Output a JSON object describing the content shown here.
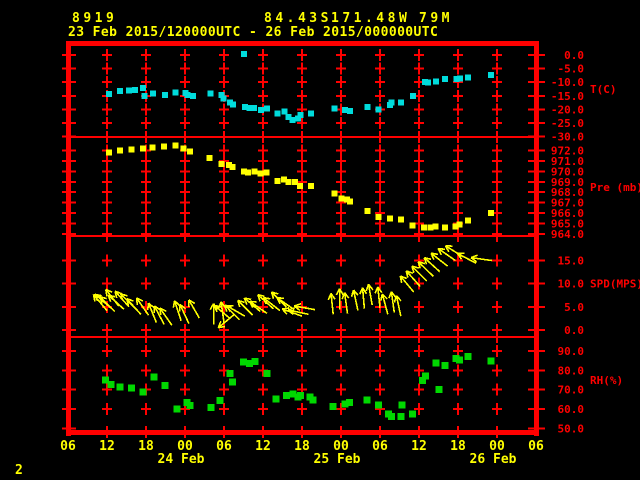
{
  "header": {
    "station_id": "8919",
    "lat": "84.43S",
    "lon": "171.48W",
    "elev": "79M",
    "period": "23 Feb 2015/120000UTC - 26 Feb 2015/000000UTC"
  },
  "footer": {
    "note": "2"
  },
  "colors": {
    "background": "#000000",
    "frame": "#ff0000",
    "axis_text": "#ff0000",
    "header_text": "#ffff00",
    "time_text": "#ffff00",
    "temperature": "#00dcdc",
    "pressure": "#ffff00",
    "wind": "#ffff00",
    "humidity": "#00d800"
  },
  "time_axis": {
    "hours_total": 72,
    "hour_step": 6,
    "hour_labels": [
      "06",
      "12",
      "18",
      "00",
      "06",
      "12",
      "18",
      "00",
      "06",
      "12",
      "18",
      "00",
      "06"
    ],
    "date_labels": [
      {
        "text": "24 Feb",
        "col": 3
      },
      {
        "text": "25 Feb",
        "col": 7
      },
      {
        "text": "26 Feb",
        "col": 11
      }
    ]
  },
  "chart_data": [
    {
      "id": "temperature",
      "type": "scatter",
      "unit_label": "T(C)",
      "unit_label_y_value": -12.5,
      "color_key": "temperature",
      "ylim": [
        3.3,
        -30.1
      ],
      "yticks": [
        0,
        -5,
        -10,
        -15,
        -20,
        -25,
        -30
      ],
      "ytick_labels": [
        "0.0",
        "-5.0",
        "-10.0",
        "-15.0",
        "-20.0",
        "-25.0",
        "-30.0"
      ],
      "plus_rows": [
        0,
        -5,
        -10,
        -15,
        -20,
        -25
      ],
      "points": [
        [
          6.3,
          -14.4
        ],
        [
          8.0,
          -13.2
        ],
        [
          9.4,
          -13.1
        ],
        [
          10.3,
          -12.9
        ],
        [
          11.5,
          -12.1
        ],
        [
          11.8,
          -15.0
        ],
        [
          13.1,
          -14.1
        ],
        [
          14.9,
          -14.7
        ],
        [
          16.5,
          -13.7
        ],
        [
          18.1,
          -13.9
        ],
        [
          18.4,
          -14.7
        ],
        [
          19.2,
          -15.1
        ],
        [
          21.9,
          -14.1
        ],
        [
          23.6,
          -14.7
        ],
        [
          23.9,
          -15.9
        ],
        [
          24.9,
          -17.4
        ],
        [
          25.4,
          -18.1
        ],
        [
          27.1,
          0.3
        ],
        [
          27.2,
          -19.0
        ],
        [
          27.9,
          -19.4
        ],
        [
          28.6,
          -19.4
        ],
        [
          29.7,
          -20.2
        ],
        [
          30.6,
          -19.6
        ],
        [
          32.2,
          -21.4
        ],
        [
          33.3,
          -20.8
        ],
        [
          33.9,
          -22.7
        ],
        [
          34.5,
          -23.9
        ],
        [
          35.4,
          -23.3
        ],
        [
          35.8,
          -22.1
        ],
        [
          37.4,
          -21.4
        ],
        [
          41.0,
          -19.6
        ],
        [
          42.6,
          -20.2
        ],
        [
          43.4,
          -20.5
        ],
        [
          46.1,
          -19.0
        ],
        [
          47.8,
          -20.0
        ],
        [
          49.5,
          -18.4
        ],
        [
          49.8,
          -17.4
        ],
        [
          51.2,
          -17.4
        ],
        [
          53.1,
          -15.0
        ],
        [
          54.9,
          -10.0
        ],
        [
          55.4,
          -10.1
        ],
        [
          56.6,
          -9.8
        ],
        [
          58.0,
          -8.8
        ],
        [
          59.8,
          -8.8
        ],
        [
          60.3,
          -8.6
        ],
        [
          61.5,
          -8.3
        ],
        [
          65.1,
          -7.3
        ]
      ]
    },
    {
      "id": "pressure",
      "type": "scatter",
      "unit_label": "Pre (mb)",
      "unit_label_y_value": 968.5,
      "color_key": "pressure",
      "ylim": [
        973.3,
        963.8
      ],
      "yticks": [
        972,
        971,
        970,
        969,
        968,
        967,
        966,
        965,
        964
      ],
      "ytick_labels": [
        "972.0",
        "971.0",
        "970.0",
        "969.0",
        "968.0",
        "967.0",
        "966.0",
        "965.0",
        "964.0"
      ],
      "plus_rows": [
        972,
        971,
        970,
        969,
        968,
        967,
        966,
        965,
        964
      ],
      "points": [
        [
          6.3,
          971.8
        ],
        [
          8.0,
          972.0
        ],
        [
          9.8,
          972.1
        ],
        [
          11.5,
          972.2
        ],
        [
          13.0,
          972.3
        ],
        [
          14.8,
          972.4
        ],
        [
          16.5,
          972.5
        ],
        [
          17.8,
          972.2
        ],
        [
          18.8,
          971.9
        ],
        [
          21.8,
          971.3
        ],
        [
          23.6,
          970.7
        ],
        [
          24.8,
          970.6
        ],
        [
          25.3,
          970.4
        ],
        [
          27.1,
          970.0
        ],
        [
          27.7,
          969.9
        ],
        [
          28.7,
          970.0
        ],
        [
          29.6,
          969.8
        ],
        [
          30.5,
          969.9
        ],
        [
          32.2,
          969.1
        ],
        [
          33.2,
          969.2
        ],
        [
          33.9,
          969.0
        ],
        [
          34.9,
          969.0
        ],
        [
          35.7,
          968.6
        ],
        [
          37.4,
          968.6
        ],
        [
          41.0,
          967.9
        ],
        [
          42.1,
          967.4
        ],
        [
          42.9,
          967.3
        ],
        [
          43.4,
          967.1
        ],
        [
          46.1,
          966.2
        ],
        [
          47.8,
          965.6
        ],
        [
          49.5,
          965.5
        ],
        [
          51.2,
          965.4
        ],
        [
          53.0,
          964.8
        ],
        [
          54.8,
          964.6
        ],
        [
          55.8,
          964.6
        ],
        [
          56.5,
          964.7
        ],
        [
          58.0,
          964.6
        ],
        [
          59.6,
          964.7
        ],
        [
          60.2,
          964.9
        ],
        [
          61.5,
          965.3
        ],
        [
          65.1,
          966.0
        ]
      ]
    },
    {
      "id": "wind-speed",
      "type": "wind-arrows",
      "unit_label": "SPD(MPS)",
      "unit_label_y_value": 10,
      "color_key": "wind",
      "ylim": [
        20.3,
        -1.5
      ],
      "yticks": [
        15,
        10,
        5,
        0
      ],
      "ytick_labels": [
        "15.0",
        "10.0",
        "5.0",
        "0.0"
      ],
      "plus_rows": [
        15,
        10,
        5,
        0
      ],
      "points": [
        [
          6.0,
          4.2,
          -40
        ],
        [
          6.6,
          4.8,
          -50
        ],
        [
          7.2,
          4.0,
          -45
        ],
        [
          7.8,
          5.2,
          -38
        ],
        [
          8.6,
          4.5,
          -48
        ],
        [
          9.4,
          5.0,
          -42
        ],
        [
          10.4,
          4.6,
          -45
        ],
        [
          11.2,
          3.4,
          -42
        ],
        [
          12.4,
          3.2,
          -35
        ],
        [
          13.6,
          1.6,
          -22
        ],
        [
          14.8,
          1.2,
          -28
        ],
        [
          16.0,
          1.0,
          -35
        ],
        [
          17.4,
          2.0,
          -18
        ],
        [
          18.6,
          1.4,
          -25
        ],
        [
          20.2,
          2.6,
          -30
        ],
        [
          22.4,
          1.2,
          0
        ],
        [
          24.0,
          1.6,
          -8
        ],
        [
          25.0,
          2.4,
          -50
        ],
        [
          25.6,
          3.4,
          -130
        ],
        [
          26.4,
          2.2,
          -45
        ],
        [
          27.2,
          3.0,
          -60
        ],
        [
          28.4,
          3.2,
          -45
        ],
        [
          29.6,
          4.0,
          -50
        ],
        [
          30.6,
          3.6,
          -55
        ],
        [
          31.6,
          4.6,
          -48
        ],
        [
          32.6,
          4.2,
          -52
        ],
        [
          33.6,
          5.0,
          -45
        ],
        [
          34.8,
          4.4,
          -55
        ],
        [
          36.0,
          3.0,
          -70
        ],
        [
          37.0,
          3.4,
          -78
        ],
        [
          38.0,
          4.4,
          -80
        ],
        [
          40.8,
          3.4,
          -6
        ],
        [
          41.8,
          4.4,
          0
        ],
        [
          43.0,
          3.6,
          -8
        ],
        [
          44.6,
          4.2,
          -12
        ],
        [
          45.6,
          4.6,
          -5
        ],
        [
          46.8,
          5.4,
          -10
        ],
        [
          48.0,
          4.8,
          -6
        ],
        [
          49.2,
          3.4,
          -15
        ],
        [
          50.2,
          3.8,
          -8
        ],
        [
          51.2,
          3.0,
          -12
        ],
        [
          53.2,
          8.2,
          -40
        ],
        [
          54.2,
          9.4,
          -42
        ],
        [
          55.2,
          10.6,
          -45
        ],
        [
          56.2,
          11.6,
          -46
        ],
        [
          57.2,
          12.6,
          -48
        ],
        [
          58.4,
          13.8,
          -52
        ],
        [
          59.6,
          15.0,
          -55
        ],
        [
          60.8,
          15.8,
          -58
        ],
        [
          62.8,
          14.4,
          -62
        ],
        [
          65.2,
          15.0,
          -82
        ]
      ]
    },
    {
      "id": "humidity",
      "type": "scatter",
      "unit_label": "RH(%)",
      "unit_label_y_value": 75,
      "color_key": "humidity",
      "ylim": [
        97.3,
        48.1
      ],
      "yticks": [
        90,
        80,
        70,
        60,
        50
      ],
      "ytick_labels": [
        "90.0",
        "80.0",
        "70.0",
        "60.0",
        "50.0"
      ],
      "plus_rows": [
        90,
        80,
        70,
        60
      ],
      "points": [
        [
          5.8,
          75.0
        ],
        [
          6.6,
          72.7
        ],
        [
          8.0,
          71.4
        ],
        [
          9.8,
          70.9
        ],
        [
          11.5,
          68.8
        ],
        [
          13.2,
          76.6
        ],
        [
          14.9,
          72.1
        ],
        [
          16.8,
          60.0
        ],
        [
          18.3,
          63.4
        ],
        [
          18.8,
          61.7
        ],
        [
          22.0,
          60.9
        ],
        [
          23.4,
          64.3
        ],
        [
          24.9,
          78.4
        ],
        [
          25.3,
          73.9
        ],
        [
          27.0,
          84.3
        ],
        [
          27.9,
          83.5
        ],
        [
          28.8,
          84.7
        ],
        [
          30.6,
          78.3
        ],
        [
          32.0,
          65.2
        ],
        [
          33.6,
          66.9
        ],
        [
          34.6,
          67.8
        ],
        [
          35.4,
          66.1
        ],
        [
          35.8,
          66.9
        ],
        [
          37.2,
          66.1
        ],
        [
          37.7,
          64.7
        ],
        [
          40.8,
          61.2
        ],
        [
          42.6,
          62.5
        ],
        [
          43.3,
          63.4
        ],
        [
          46.0,
          64.7
        ],
        [
          47.8,
          62.1
        ],
        [
          49.3,
          57.4
        ],
        [
          49.8,
          56.0
        ],
        [
          51.2,
          56.0
        ],
        [
          51.4,
          62.2
        ],
        [
          53.0,
          57.4
        ],
        [
          54.5,
          74.9
        ],
        [
          55.0,
          77.0
        ],
        [
          56.6,
          83.8
        ],
        [
          57.1,
          70.2
        ],
        [
          58.0,
          82.6
        ],
        [
          59.7,
          86.1
        ],
        [
          60.2,
          85.5
        ],
        [
          61.5,
          87.2
        ],
        [
          65.1,
          84.9
        ]
      ]
    }
  ]
}
